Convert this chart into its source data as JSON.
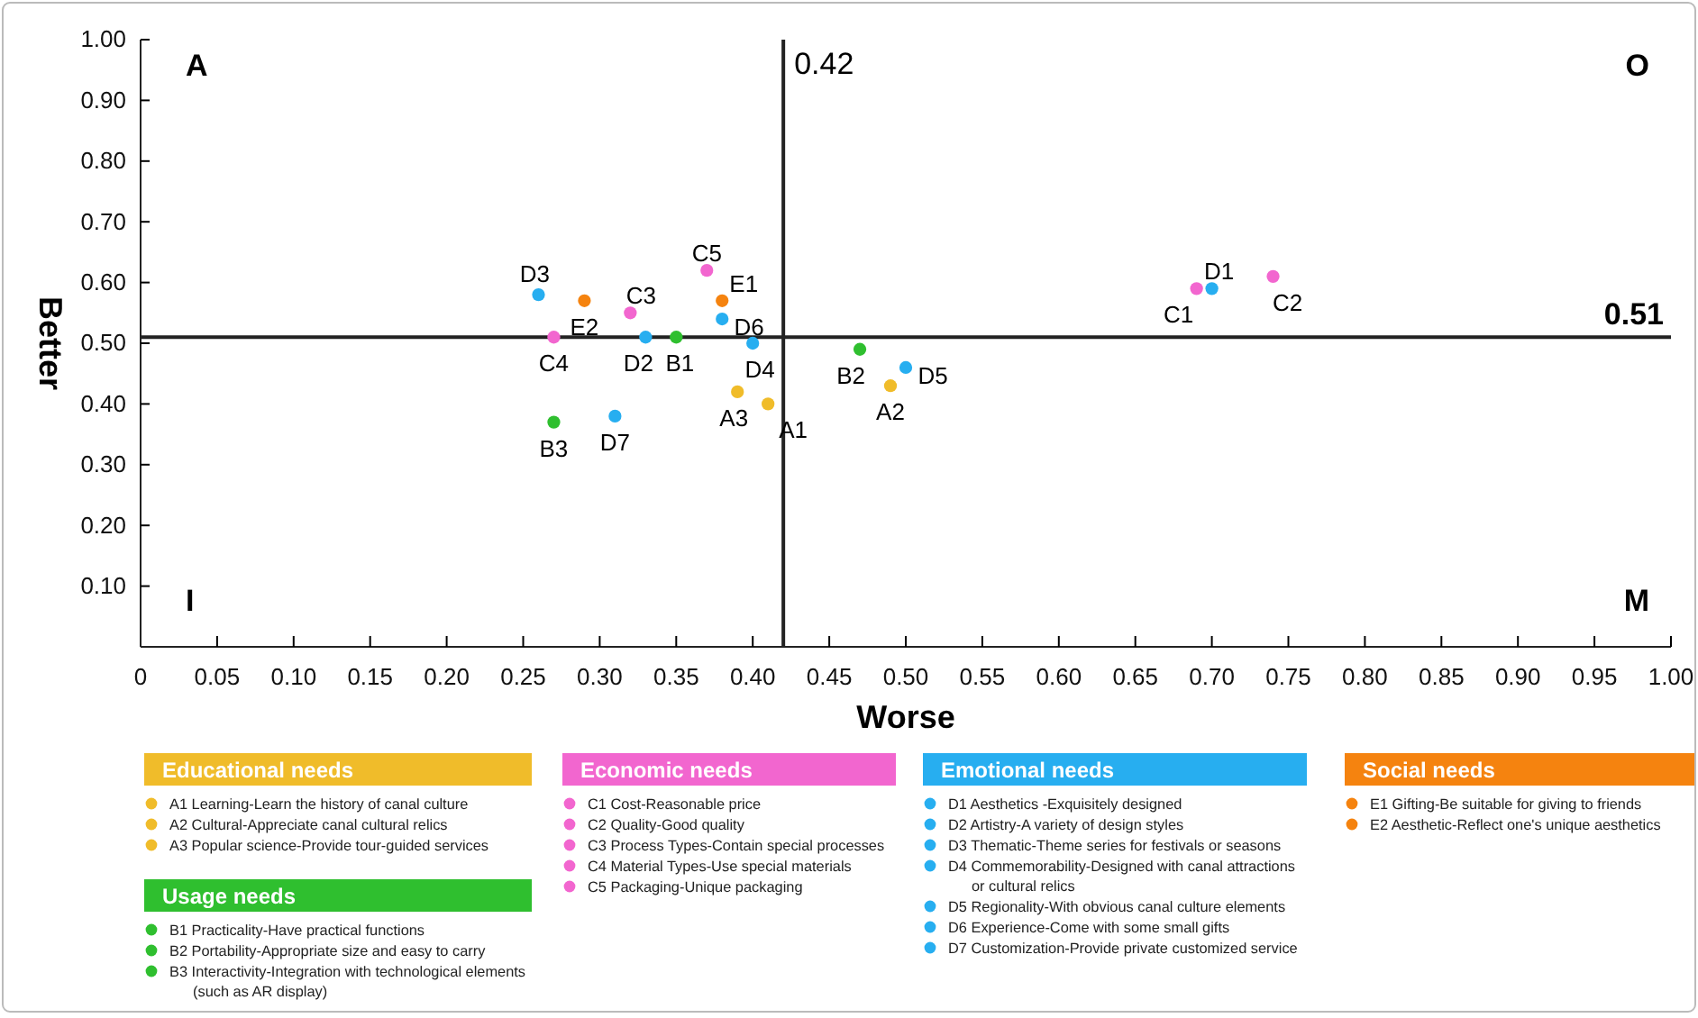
{
  "chart_data": {
    "type": "scatter",
    "xlabel": "Worse",
    "ylabel": "Better",
    "xlim": [
      0,
      1
    ],
    "ylim": [
      0,
      1
    ],
    "xticks": [
      0,
      {
        "value": 0.05,
        "label": "0.05"
      },
      {
        "value": 0.1,
        "label": "0.10"
      },
      {
        "value": 0.15,
        "label": "0.15"
      },
      {
        "value": 0.2,
        "label": "0.20"
      },
      {
        "value": 0.25,
        "label": "0.25"
      },
      {
        "value": 0.3,
        "label": "0.30"
      },
      {
        "value": 0.35,
        "label": "0.35"
      },
      {
        "value": 0.4,
        "label": "0.40"
      },
      {
        "value": 0.45,
        "label": "0.45"
      },
      {
        "value": 0.5,
        "label": "0.50"
      },
      {
        "value": 0.55,
        "label": "0.55"
      },
      {
        "value": 0.6,
        "label": "0.60"
      },
      {
        "value": 0.65,
        "label": "0.65"
      },
      {
        "value": 0.7,
        "label": "0.70"
      },
      {
        "value": 0.75,
        "label": "0.75"
      },
      {
        "value": 0.8,
        "label": "0.80"
      },
      {
        "value": 0.85,
        "label": "0.85"
      },
      {
        "value": 0.9,
        "label": "0.90"
      },
      {
        "value": 0.95,
        "label": "0.95"
      },
      {
        "value": 1,
        "label": "1.00"
      }
    ],
    "yticks": [
      {
        "value": 0.1,
        "label": "0.10"
      },
      {
        "value": 0.2,
        "label": "0.20"
      },
      {
        "value": 0.3,
        "label": "0.30"
      },
      {
        "value": 0.4,
        "label": "0.40"
      },
      {
        "value": 0.5,
        "label": "0.50"
      },
      {
        "value": 0.6,
        "label": "0.60"
      },
      {
        "value": 0.7,
        "label": "0.70"
      },
      {
        "value": 0.8,
        "label": "0.80"
      },
      {
        "value": 0.9,
        "label": "0.90"
      },
      {
        "value": 1,
        "label": "1.00"
      }
    ],
    "grid": false,
    "marker": "circle",
    "legend": "bottom",
    "series": [
      {
        "name": "Educational needs",
        "color": "#f0bc2a",
        "x": [
          0.41,
          0.49,
          0.39
        ],
        "values": [
          0.4,
          0.43,
          0.42
        ]
      },
      {
        "name": "Usage needs",
        "color": "#2fbf2f",
        "x": [
          0.35,
          0.47,
          0.27
        ],
        "values": [
          0.51,
          0.49,
          0.37
        ]
      },
      {
        "name": "Economic needs",
        "color": "#f266cf",
        "x": [
          0.69,
          0.74,
          0.32,
          0.27,
          0.37
        ],
        "values": [
          0.59,
          0.61,
          0.55,
          0.51,
          0.62
        ]
      },
      {
        "name": "Emotional needs",
        "color": "#27aef0",
        "x": [
          0.7,
          0.33,
          0.26,
          0.4,
          0.5,
          0.38,
          0.31
        ],
        "values": [
          0.59,
          0.51,
          0.58,
          0.5,
          0.46,
          0.54,
          0.38
        ]
      },
      {
        "name": "Social needs",
        "color": "#f5830f",
        "x": [
          0.38,
          0.29
        ],
        "values": [
          0.57,
          0.57
        ]
      }
    ],
    "ref_lines": [
      {
        "axis": "x",
        "value": 0.42,
        "label": "0.42"
      },
      {
        "axis": "y",
        "value": 0.51,
        "label": "0.51"
      }
    ],
    "annotations": [
      "A",
      "O",
      "I",
      "M",
      "A1  Learning-Learn the history of canal culture",
      "A2  Cultural-Appreciate canal cultural relics",
      "A3  Popular science-Provide tour-guided services",
      "B1  Practicality-Have practical functions",
      "B2  Portability-Appropriate size and easy to carry",
      "B3  Interactivity-Integration with technological elements (such as AR display)",
      "C1  Cost-Reasonable price",
      "C2  Quality-Good quality",
      "C3  Process Types-Contain special processes",
      "C4  Material Types-Use special materials",
      "C5  Packaging-Unique packaging",
      "D1  Aesthetics  -Exquisitely designed",
      "D2  Artistry-A variety of design styles",
      "D3  Thematic-Theme series for festivals or seasons",
      "D4  Commemorability-Designed with canal attractions or cultural relics",
      "D5  Regionality-With obvious canal culture elements",
      "D6  Experience-Come with some small gifts",
      "D7  Customization-Provide private customized service",
      "E1  Gifting-Be suitable for giving to friends",
      "E2  Aesthetic-Reflect one's unique aesthetics",
      {
        "text": "A1",
        "x": 0.41,
        "y": 0.4
      },
      {
        "text": "A2",
        "x": 0.49,
        "y": 0.43
      },
      {
        "text": "A3",
        "x": 0.39,
        "y": 0.42
      },
      {
        "text": "B1",
        "x": 0.35,
        "y": 0.51
      },
      {
        "text": "B2",
        "x": 0.47,
        "y": 0.49
      },
      {
        "text": "B3",
        "x": 0.27,
        "y": 0.37
      },
      {
        "text": "C1",
        "x": 0.69,
        "y": 0.59
      },
      {
        "text": "C2",
        "x": 0.74,
        "y": 0.61
      },
      {
        "text": "C3",
        "x": 0.32,
        "y": 0.55
      },
      {
        "text": "C4",
        "x": 0.27,
        "y": 0.51
      },
      {
        "text": "C5",
        "x": 0.37,
        "y": 0.62
      },
      {
        "text": "D1",
        "x": 0.7,
        "y": 0.59
      },
      {
        "text": "D2",
        "x": 0.33,
        "y": 0.51
      },
      {
        "text": "D3",
        "x": 0.26,
        "y": 0.58
      },
      {
        "text": "D4",
        "x": 0.4,
        "y": 0.5
      },
      {
        "text": "D5",
        "x": 0.5,
        "y": 0.46
      },
      {
        "text": "D6",
        "x": 0.38,
        "y": 0.54
      },
      {
        "text": "D7",
        "x": 0.31,
        "y": 0.38
      },
      {
        "text": "E1",
        "x": 0.38,
        "y": 0.57
      },
      {
        "text": "E2",
        "x": 0.29,
        "y": 0.57
      }
    ]
  }
}
